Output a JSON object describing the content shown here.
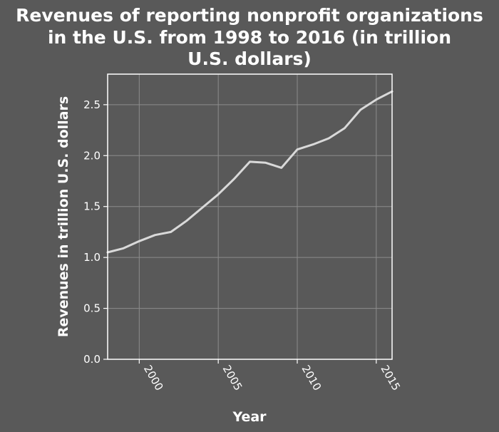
{
  "chart_data": {
    "type": "line",
    "title_lines": [
      "Revenues of reporting nonprofit organizations",
      "in the U.S. from 1998 to 2016 (in trillion",
      "U.S. dollars)"
    ],
    "xlabel": "Year",
    "ylabel": "Revenues in trillion U.S. dollars",
    "xlim": [
      1998,
      2016
    ],
    "ylim": [
      0,
      2.8
    ],
    "xticks": [
      2000,
      2005,
      2010,
      2015
    ],
    "yticks": [
      0.0,
      0.5,
      1.0,
      1.5,
      2.0,
      2.5
    ],
    "grid": true,
    "series": [
      {
        "x": [
          1998,
          1999,
          2000,
          2001,
          2002,
          2003,
          2004,
          2005,
          2006,
          2007,
          2008,
          2009,
          2010,
          2011,
          2012,
          2013,
          2014,
          2015,
          2016
        ],
        "values": [
          1.05,
          1.09,
          1.16,
          1.22,
          1.25,
          1.36,
          1.49,
          1.62,
          1.77,
          1.94,
          1.93,
          1.88,
          2.06,
          2.11,
          2.17,
          2.27,
          2.45,
          2.55,
          2.63
        ]
      }
    ],
    "colors": {
      "background": "#595959",
      "plot_background": "#595959",
      "line": "#d9d9d9",
      "grid": "#8c8c8c",
      "text": "#ffffff"
    }
  }
}
